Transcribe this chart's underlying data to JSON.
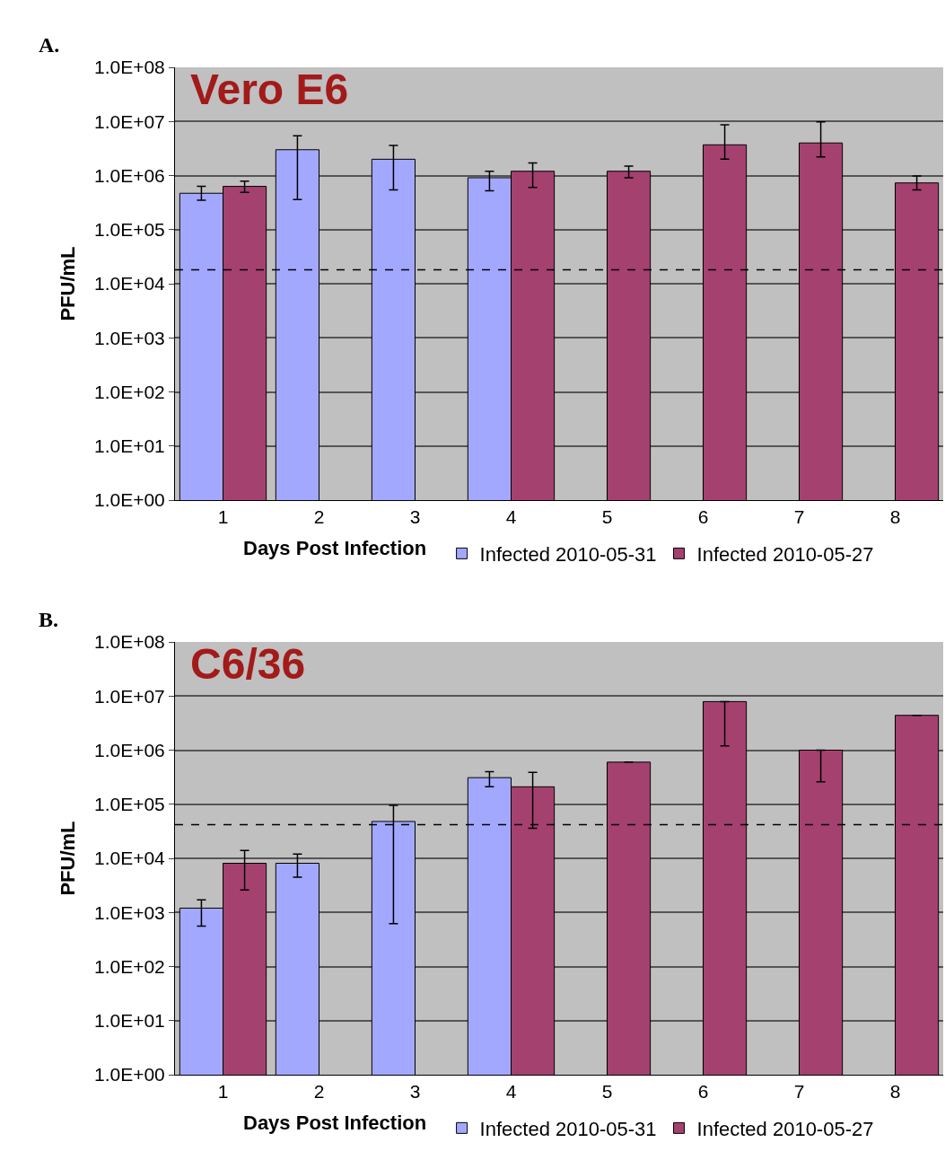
{
  "chart_data": [
    {
      "type": "bar",
      "title": "Vero E6",
      "xlabel": "Days Post Infection",
      "ylabel": "PFU/mL",
      "annotations": [
        "A."
      ],
      "categories": [
        "1",
        "2",
        "3",
        "4",
        "5",
        "6",
        "7",
        "8"
      ],
      "log": "y",
      "grid": "y",
      "legend": "bottom",
      "ylim": [
        1,
        100000000
      ],
      "yticks": [
        {
          "value": 1,
          "label": "1.0E+00"
        },
        {
          "value": 10,
          "label": "1.0E+01"
        },
        {
          "value": 100,
          "label": "1.0E+02"
        },
        {
          "value": 1000,
          "label": "1.0E+03"
        },
        {
          "value": 10000,
          "label": "1.0E+04"
        },
        {
          "value": 100000,
          "label": "1.0E+05"
        },
        {
          "value": 1000000,
          "label": "1.0E+06"
        },
        {
          "value": 10000000,
          "label": "1.0E+07"
        },
        {
          "value": 100000000,
          "label": "1.0E+08"
        }
      ],
      "ref_lines": [
        {
          "axis": "y",
          "value": 18000,
          "line_style": "dashed",
          "color": "#000000"
        }
      ],
      "series": [
        {
          "name": "Infected 2010-05-31",
          "color": "#a3a8ff",
          "values": [
            470000,
            3000000,
            2000000,
            910000,
            null,
            null,
            null,
            null
          ],
          "errors": [
            [
              350000,
              630000
            ],
            [
              360000,
              5400000
            ],
            [
              540000,
              3600000
            ],
            [
              520000,
              1200000
            ],
            null,
            null,
            null,
            null
          ]
        },
        {
          "name": "Infected 2010-05-27",
          "color": "#a5416f",
          "values": [
            630000,
            null,
            null,
            1200000,
            1200000,
            3700000,
            4000000,
            730000
          ],
          "errors": [
            [
              490000,
              790000
            ],
            null,
            null,
            [
              600000,
              1700000
            ],
            [
              910000,
              1500000
            ],
            [
              2000000,
              8700000
            ],
            [
              2200000,
              9800000
            ],
            [
              540000,
              980000
            ]
          ]
        }
      ]
    },
    {
      "type": "bar",
      "title": "C6/36",
      "xlabel": "Days Post Infection",
      "ylabel": "PFU/mL",
      "annotations": [
        "B."
      ],
      "categories": [
        "1",
        "2",
        "3",
        "4",
        "5",
        "6",
        "7",
        "8"
      ],
      "log": "y",
      "grid": "y",
      "legend": "bottom",
      "ylim": [
        1,
        100000000
      ],
      "yticks": [
        {
          "value": 1,
          "label": "1.0E+00"
        },
        {
          "value": 10,
          "label": "1.0E+01"
        },
        {
          "value": 100,
          "label": "1.0E+02"
        },
        {
          "value": 1000,
          "label": "1.0E+03"
        },
        {
          "value": 10000,
          "label": "1.0E+04"
        },
        {
          "value": 100000,
          "label": "1.0E+05"
        },
        {
          "value": 1000000,
          "label": "1.0E+06"
        },
        {
          "value": 10000000,
          "label": "1.0E+07"
        },
        {
          "value": 100000000,
          "label": "1.0E+08"
        }
      ],
      "ref_lines": [
        {
          "axis": "y",
          "value": 42000,
          "line_style": "dashed",
          "color": "#000000"
        }
      ],
      "series": [
        {
          "name": "Infected 2010-05-31",
          "color": "#a3a8ff",
          "values": [
            1200,
            8100,
            48000,
            310000,
            null,
            null,
            null,
            null
          ],
          "errors": [
            [
              560,
              1700
            ],
            [
              4500,
              12000
            ],
            [
              620,
              95000
            ],
            [
              210000,
              400000
            ],
            null,
            null,
            null,
            null
          ]
        },
        {
          "name": "Infected 2010-05-27",
          "color": "#a5416f",
          "values": [
            8100,
            null,
            null,
            210000,
            600000,
            7900000,
            1000000,
            4400000
          ],
          "errors": [
            [
              2600,
              14000
            ],
            null,
            null,
            [
              36000,
              390000
            ],
            null,
            [
              1200000,
              7900000
            ],
            [
              260000,
              1000000
            ],
            null
          ]
        }
      ]
    }
  ]
}
